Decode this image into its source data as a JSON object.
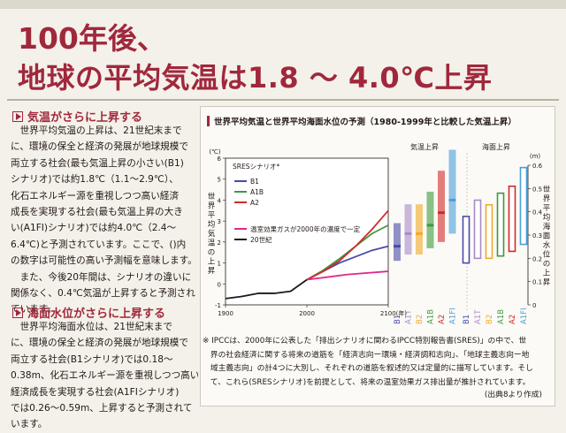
{
  "title": {
    "line1": "100年後、",
    "line2": "地球の平均気温は1.8 ～ 4.0℃上昇"
  },
  "sections": [
    {
      "heading": "気温がさらに上昇する",
      "lines": [
        "　世界平均気温の上昇は、21世紀末まで",
        "に、環境の保全と経済の発展が地球規模で",
        "両立する社会(最も気温上昇の小さい(B1)",
        "シナリオ)では約1.8℃（1.1～2.9℃）、",
        "化石エネルギー源を重視しつつ高い経済",
        "成長を実現する社会(最も気温上昇の大き",
        "い(A1FI)シナリオ)では約4.0℃（2.4～",
        "6.4℃)と予測されています。ここで、()内",
        "の数字は可能性の高い予測幅を意味します。",
        "　また、今後20年間は、シナリオの違いに",
        "関係なく、0.4℃気温が上昇すると予測され",
        "ています。"
      ]
    },
    {
      "heading": "海面水位がさらに上昇する",
      "lines": [
        "　世界平均海面水位は、21世紀末まで",
        "に、環境の保全と経済の発展が地球規模で",
        "両立する社会(B1シナリオ)では0.18～",
        "0.38m、化石エネルギー源を重視しつつ高い",
        "経済成長を実現する社会(A1FIシナリオ)",
        "では0.26～0.59m、上昇すると予測されて",
        "います。"
      ]
    }
  ],
  "chart_header": "世界平均気温と世界平均海面水位の予測（1980-1999年と比較した気温上昇）",
  "note_lines": [
    "※ IPCCは、2000年に公表した「排出シナリオに関わるIPCC特別報告書(SRES)」の中で、世",
    "　界の社会経済に関する将来の道筋を「経済志向ー環境・経済調和志向」、「地球主義志向ー地",
    "　域主義志向」の計4つに大別し、それぞれの道筋を叙述的又は定量的に描写しています。そし",
    "　て、これら(SRESシナリオ)を前提として、将来の温室効果ガス排出量が推計されています。"
  ],
  "source": "(出典8より作成)",
  "colors": {
    "accent": "#a0283c",
    "B1": "#4a4aa8",
    "A1B": "#3d9a3d",
    "A2": "#d22a2a",
    "constant": "#e0288c",
    "20th": "#1a1a1a",
    "B2": "#f0aa28",
    "A1T": "#a88bc8",
    "A1FI": "#4a9ed8"
  },
  "chart_data": [
    {
      "type": "line",
      "ylabel": "世界平均気温の上昇",
      "yunit": "(℃)",
      "xlim": [
        1900,
        2100
      ],
      "ylim": [
        -1,
        6
      ],
      "xticks": [
        "1900",
        "2000",
        "2100(年)"
      ],
      "yticks": [
        6,
        5,
        4,
        3,
        2,
        1,
        0,
        -1
      ],
      "legend_title": "SRESシナリオ*",
      "series": [
        {
          "name": "B1",
          "x": [
            2000,
            2020,
            2040,
            2060,
            2080,
            2100
          ],
          "y": [
            0.2,
            0.6,
            1.0,
            1.3,
            1.6,
            1.8
          ]
        },
        {
          "name": "A1B",
          "x": [
            2000,
            2020,
            2040,
            2060,
            2080,
            2100
          ],
          "y": [
            0.2,
            0.65,
            1.2,
            1.8,
            2.4,
            2.8
          ]
        },
        {
          "name": "A2",
          "x": [
            2000,
            2020,
            2040,
            2060,
            2080,
            2100
          ],
          "y": [
            0.2,
            0.6,
            1.1,
            1.8,
            2.6,
            3.5
          ]
        },
        {
          "name": "温室効果ガスが2000年の濃度で一定",
          "x": [
            2000,
            2050,
            2100
          ],
          "y": [
            0.2,
            0.45,
            0.6
          ]
        },
        {
          "name": "20世紀",
          "x": [
            1900,
            1920,
            1940,
            1960,
            1980,
            2000
          ],
          "y": [
            -0.7,
            -0.6,
            -0.45,
            -0.45,
            -0.35,
            0.2
          ]
        }
      ]
    },
    {
      "type": "bar",
      "group_label": "気温上昇",
      "categories": [
        "B1",
        "A1T",
        "B2",
        "A1B",
        "A2",
        "A1FI"
      ],
      "ranges": [
        [
          1.1,
          2.9
        ],
        [
          1.4,
          3.8
        ],
        [
          1.4,
          3.8
        ],
        [
          1.7,
          4.4
        ],
        [
          2.0,
          5.4
        ],
        [
          2.4,
          6.4
        ]
      ],
      "best": [
        1.8,
        2.4,
        2.4,
        2.8,
        3.4,
        4.0
      ]
    },
    {
      "type": "bar",
      "group_label": "海面上昇",
      "ylabel": "世界平均海面水位の上昇",
      "yunit": "(m)",
      "ylim": [
        0,
        0.6
      ],
      "yticks": [
        0.6,
        0.5,
        0.4,
        0.3,
        0.2,
        0.1,
        0
      ],
      "categories": [
        "B1",
        "A1T",
        "B2",
        "A1B",
        "A2",
        "A1FI"
      ],
      "ranges": [
        [
          0.18,
          0.38
        ],
        [
          0.2,
          0.45
        ],
        [
          0.2,
          0.43
        ],
        [
          0.21,
          0.48
        ],
        [
          0.23,
          0.51
        ],
        [
          0.26,
          0.59
        ]
      ]
    }
  ]
}
